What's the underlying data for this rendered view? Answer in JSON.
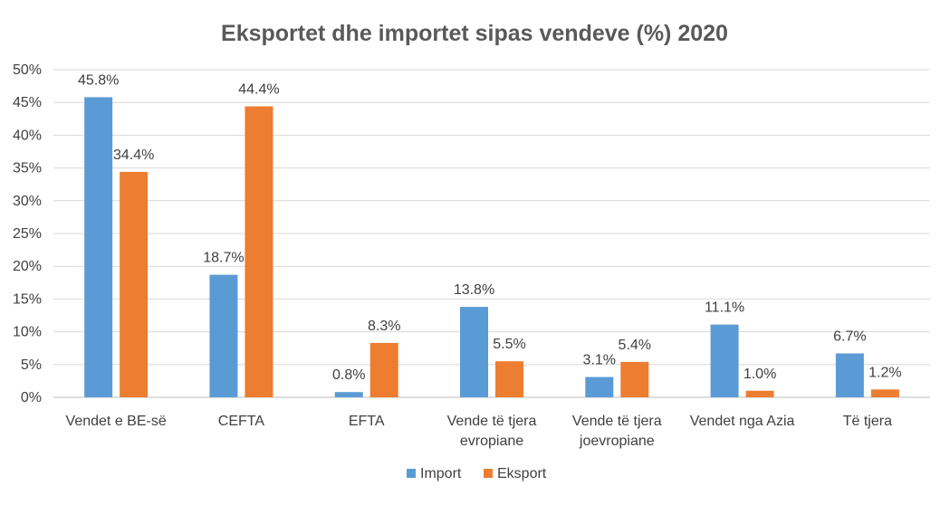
{
  "chart_data": {
    "type": "bar",
    "title": "Eksportet dhe importet sipas vendeve (%) 2020",
    "xlabel": "",
    "ylabel": "",
    "ylim": [
      0,
      50
    ],
    "yticks": [
      "0%",
      "5%",
      "10%",
      "15%",
      "20%",
      "25%",
      "30%",
      "35%",
      "40%",
      "45%",
      "50%"
    ],
    "categories": [
      [
        "Vendet e BE-së"
      ],
      [
        "CEFTA"
      ],
      [
        "EFTA"
      ],
      [
        "Vende të tjera",
        "evropiane"
      ],
      [
        "Vende të tjera",
        "joevropiane"
      ],
      [
        "Vendet nga Azia"
      ],
      [
        "Të tjera"
      ]
    ],
    "series": [
      {
        "name": "Import",
        "color": "#5B9BD5",
        "values": [
          45.8,
          18.7,
          0.8,
          13.8,
          3.1,
          11.1,
          6.7
        ],
        "labels": [
          "45.8%",
          "18.7%",
          "0.8%",
          "13.8%",
          "3.1%",
          "11.1%",
          "6.7%"
        ]
      },
      {
        "name": "Eksport",
        "color": "#ED7D31",
        "values": [
          34.4,
          44.4,
          8.3,
          5.5,
          5.4,
          1.0,
          1.2
        ],
        "labels": [
          "34.4%",
          "44.4%",
          "8.3%",
          "5.5%",
          "5.4%",
          "1.0%",
          "1.2%"
        ]
      }
    ],
    "grid": true,
    "legend": "bottom"
  }
}
